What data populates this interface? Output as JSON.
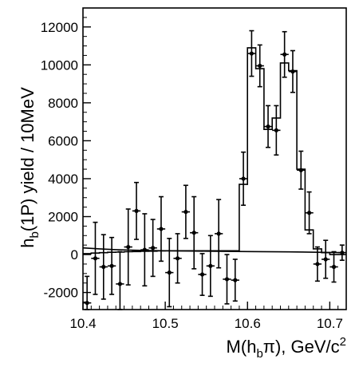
{
  "chart_data": {
    "type": "scatter",
    "title": "",
    "xlabel": {
      "text": "M(h",
      "sub": "b",
      "text2": "π), GeV/c",
      "sup": "2"
    },
    "ylabel": {
      "text": "h",
      "sub": "b",
      "text2": "(1P) yield / 10MeV"
    },
    "xlim": [
      10.4,
      10.72
    ],
    "ylim": [
      -2900,
      13000
    ],
    "x_ticks": [
      {
        "value": 10.4,
        "label": "10.4"
      },
      {
        "value": 10.5,
        "label": "10.5"
      },
      {
        "value": 10.6,
        "label": "10.6"
      },
      {
        "value": 10.7,
        "label": "10.7"
      }
    ],
    "y_ticks": [
      {
        "value": -2000,
        "label": "-2000"
      },
      {
        "value": 0,
        "label": "0"
      },
      {
        "value": 2000,
        "label": "2000"
      },
      {
        "value": 4000,
        "label": "4000"
      },
      {
        "value": 6000,
        "label": "6000"
      },
      {
        "value": 8000,
        "label": "8000"
      },
      {
        "value": 10000,
        "label": "10000"
      },
      {
        "value": 12000,
        "label": "12000"
      }
    ],
    "grid": false,
    "data_points": [
      {
        "x": 10.405,
        "y": -2550,
        "err": 1400
      },
      {
        "x": 10.415,
        "y": -200,
        "err": 1900
      },
      {
        "x": 10.425,
        "y": -650,
        "err": 1700
      },
      {
        "x": 10.435,
        "y": -600,
        "err": 1500
      },
      {
        "x": 10.445,
        "y": -1550,
        "err": 1700
      },
      {
        "x": 10.455,
        "y": 400,
        "err": 2000
      },
      {
        "x": 10.465,
        "y": 2300,
        "err": 1500
      },
      {
        "x": 10.475,
        "y": 250,
        "err": 1900
      },
      {
        "x": 10.485,
        "y": 350,
        "err": 1500
      },
      {
        "x": 10.495,
        "y": 1350,
        "err": 1700
      },
      {
        "x": 10.505,
        "y": -950,
        "err": 1800
      },
      {
        "x": 10.515,
        "y": -200,
        "err": 1300
      },
      {
        "x": 10.525,
        "y": 2250,
        "err": 1400
      },
      {
        "x": 10.535,
        "y": 1150,
        "err": 1900
      },
      {
        "x": 10.545,
        "y": -1050,
        "err": 1100
      },
      {
        "x": 10.555,
        "y": -600,
        "err": 1600
      },
      {
        "x": 10.565,
        "y": 1100,
        "err": 1800
      },
      {
        "x": 10.575,
        "y": -1300,
        "err": 1300
      },
      {
        "x": 10.585,
        "y": -1350,
        "err": 1100
      },
      {
        "x": 10.595,
        "y": 4000,
        "err": 1400
      },
      {
        "x": 10.605,
        "y": 10600,
        "err": 1200
      },
      {
        "x": 10.615,
        "y": 9950,
        "err": 1100
      },
      {
        "x": 10.625,
        "y": 6750,
        "err": 1100
      },
      {
        "x": 10.635,
        "y": 6550,
        "err": 1300
      },
      {
        "x": 10.645,
        "y": 10550,
        "err": 1200
      },
      {
        "x": 10.655,
        "y": 9650,
        "err": 1100
      },
      {
        "x": 10.665,
        "y": 4450,
        "err": 1000
      },
      {
        "x": 10.675,
        "y": 2200,
        "err": 1100
      },
      {
        "x": 10.685,
        "y": -500,
        "err": 900
      },
      {
        "x": 10.695,
        "y": -250,
        "err": 1000
      },
      {
        "x": 10.705,
        "y": -650,
        "err": 800
      },
      {
        "x": 10.715,
        "y": 100,
        "err": 400
      }
    ],
    "fit_histogram": [
      {
        "x0": 10.4,
        "x1": 10.41,
        "y": 50
      },
      {
        "x0": 10.41,
        "x1": 10.42,
        "y": 80
      },
      {
        "x0": 10.42,
        "x1": 10.43,
        "y": 100
      },
      {
        "x0": 10.43,
        "x1": 10.44,
        "y": 120
      },
      {
        "x0": 10.44,
        "x1": 10.45,
        "y": 130
      },
      {
        "x0": 10.45,
        "x1": 10.46,
        "y": 150
      },
      {
        "x0": 10.46,
        "x1": 10.47,
        "y": 160
      },
      {
        "x0": 10.47,
        "x1": 10.48,
        "y": 170
      },
      {
        "x0": 10.48,
        "x1": 10.49,
        "y": 180
      },
      {
        "x0": 10.49,
        "x1": 10.5,
        "y": 190
      },
      {
        "x0": 10.5,
        "x1": 10.51,
        "y": 200
      },
      {
        "x0": 10.51,
        "x1": 10.52,
        "y": 200
      },
      {
        "x0": 10.52,
        "x1": 10.53,
        "y": 200
      },
      {
        "x0": 10.53,
        "x1": 10.54,
        "y": 200
      },
      {
        "x0": 10.54,
        "x1": 10.55,
        "y": 200
      },
      {
        "x0": 10.55,
        "x1": 10.56,
        "y": 200
      },
      {
        "x0": 10.56,
        "x1": 10.57,
        "y": 200
      },
      {
        "x0": 10.57,
        "x1": 10.58,
        "y": 200
      },
      {
        "x0": 10.58,
        "x1": 10.59,
        "y": 200
      },
      {
        "x0": 10.59,
        "x1": 10.6,
        "y": 3700
      },
      {
        "x0": 10.6,
        "x1": 10.61,
        "y": 10900
      },
      {
        "x0": 10.61,
        "x1": 10.62,
        "y": 9800
      },
      {
        "x0": 10.62,
        "x1": 10.63,
        "y": 6600
      },
      {
        "x0": 10.63,
        "x1": 10.64,
        "y": 7200
      },
      {
        "x0": 10.64,
        "x1": 10.65,
        "y": 10100
      },
      {
        "x0": 10.65,
        "x1": 10.66,
        "y": 9700
      },
      {
        "x0": 10.66,
        "x1": 10.67,
        "y": 4500
      },
      {
        "x0": 10.67,
        "x1": 10.68,
        "y": 1300
      },
      {
        "x0": 10.68,
        "x1": 10.69,
        "y": 300
      },
      {
        "x0": 10.69,
        "x1": 10.7,
        "y": 100
      },
      {
        "x0": 10.7,
        "x1": 10.71,
        "y": 0
      },
      {
        "x0": 10.71,
        "x1": 10.72,
        "y": 0
      }
    ],
    "background_curve": [
      {
        "x": 10.4,
        "y": 350
      },
      {
        "x": 10.42,
        "y": 300
      },
      {
        "x": 10.44,
        "y": 260
      },
      {
        "x": 10.46,
        "y": 230
      },
      {
        "x": 10.48,
        "y": 210
      },
      {
        "x": 10.5,
        "y": 200
      },
      {
        "x": 10.55,
        "y": 180
      },
      {
        "x": 10.6,
        "y": 160
      },
      {
        "x": 10.65,
        "y": 140
      },
      {
        "x": 10.7,
        "y": 110
      },
      {
        "x": 10.72,
        "y": 100
      }
    ],
    "colors": {
      "ink": "#000000",
      "background": "#ffffff"
    }
  }
}
